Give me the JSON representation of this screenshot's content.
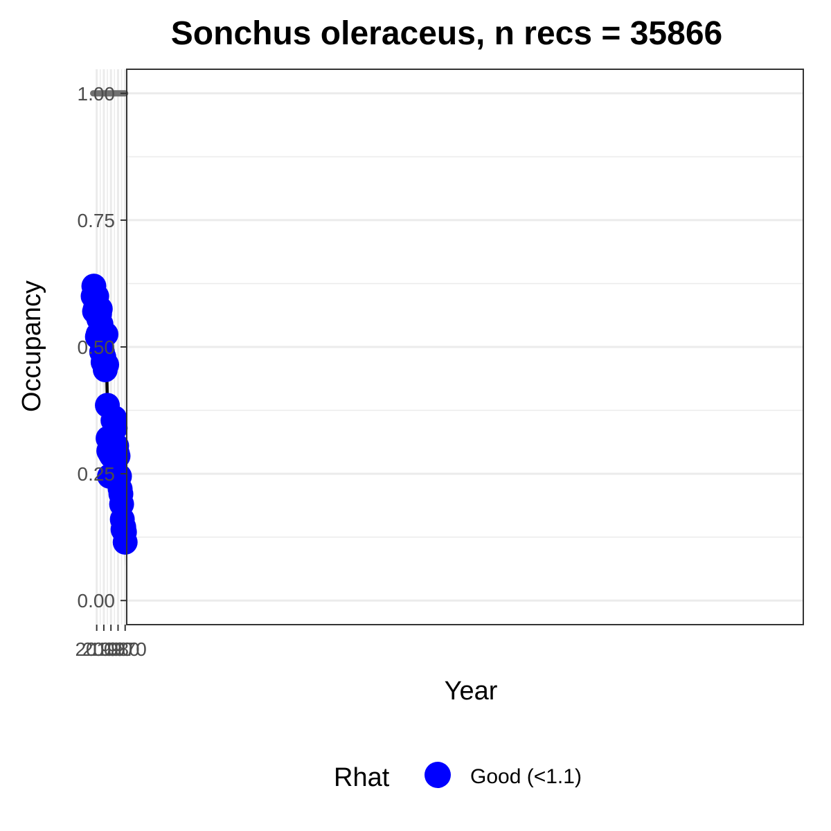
{
  "chart_data": {
    "type": "line",
    "title": "Sonchus oleraceus, n recs = 35866",
    "xlabel": "Year",
    "ylabel": "Occupancy",
    "xlim": [
      1967.8,
      1016.8
    ],
    "ylim": [
      -0.0475,
      1.0475
    ],
    "x_ticks": [
      1970,
      1980,
      1990,
      2000,
      2010
    ],
    "x_tick_labels": [
      "1970",
      "1980",
      "1990",
      "2000",
      "2010"
    ],
    "y_ticks": [
      0,
      0.25,
      0.5,
      0.75,
      1.0
    ],
    "y_tick_labels": [
      "0.00",
      "0.25",
      "0.50",
      "0.75",
      "1.00"
    ],
    "grid": true,
    "legend": {
      "position": "bottom",
      "title": "Rhat",
      "entries": [
        {
          "label": "Good (<1.1)",
          "color": "#0000ff"
        }
      ]
    },
    "colors": {
      "points": "#0000ff",
      "line": "#000000",
      "ribbon": "#d3d3d3",
      "reference": "#707070",
      "grid": "#ebebeb",
      "panel_border": "#333333"
    },
    "x": [
      1970,
      1971,
      1972,
      1973,
      1974,
      1975,
      1976,
      1977,
      1978,
      1979,
      1980,
      1981,
      1982,
      1983,
      1984,
      1985,
      1986,
      1987,
      1988,
      1989,
      1990,
      1991,
      1992,
      1993,
      1994,
      1995,
      1996,
      1997,
      1998,
      1999,
      2000,
      2001,
      2002,
      2003,
      2004,
      2005,
      2006,
      2007,
      2008,
      2009,
      2010,
      2011,
      2012,
      2013,
      2014,
      2015
    ],
    "series": [
      {
        "values": [
          0.115,
          0.135,
          0.145,
          0.14,
          0.16,
          0.19,
          0.21,
          0.22,
          0.245,
          0.245,
          0.285,
          0.29,
          0.305,
          0.29,
          0.34,
          0.36,
          0.355,
          0.355,
          0.285,
          0.285,
          0.3,
          0.29,
          0.245,
          0.295,
          0.32,
          0.385,
          0.465,
          0.525,
          0.455,
          0.465,
          0.48,
          0.47,
          0.49,
          0.49,
          0.545,
          0.575,
          0.565,
          0.555,
          0.525,
          0.52,
          0.6,
          0.58,
          0.575,
          0.57,
          0.62,
          0.6
        ],
        "lower": [
          0.065,
          0.085,
          0.095,
          0.1,
          0.115,
          0.14,
          0.155,
          0.17,
          0.19,
          0.19,
          0.23,
          0.23,
          0.25,
          0.24,
          0.29,
          0.31,
          0.31,
          0.31,
          0.24,
          0.24,
          0.255,
          0.245,
          0.21,
          0.25,
          0.27,
          0.34,
          0.42,
          0.48,
          0.41,
          0.42,
          0.44,
          0.425,
          0.445,
          0.45,
          0.505,
          0.535,
          0.525,
          0.515,
          0.49,
          0.48,
          0.57,
          0.55,
          0.545,
          0.54,
          0.59,
          0.57
        ],
        "upper": [
          0.18,
          0.195,
          0.2,
          0.195,
          0.215,
          0.245,
          0.27,
          0.28,
          0.295,
          0.3,
          0.355,
          0.36,
          0.365,
          0.35,
          0.38,
          0.4,
          0.405,
          0.39,
          0.33,
          0.33,
          0.35,
          0.33,
          0.29,
          0.34,
          0.37,
          0.43,
          0.51,
          0.57,
          0.5,
          0.51,
          0.52,
          0.51,
          0.535,
          0.535,
          0.585,
          0.6,
          0.6,
          0.585,
          0.565,
          0.56,
          0.625,
          0.605,
          0.6,
          0.6,
          0.645,
          0.625
        ]
      },
      {
        "values": [
          1,
          1,
          1,
          1,
          1,
          1,
          1,
          1,
          1,
          1,
          1,
          1,
          1,
          1,
          1,
          1,
          1,
          1,
          1,
          1,
          1,
          1,
          1,
          1,
          1,
          1,
          1,
          1,
          1,
          1,
          1,
          1,
          1,
          1,
          1,
          1,
          1,
          1,
          1,
          1,
          1,
          1,
          1,
          1,
          1,
          1
        ]
      }
    ]
  }
}
